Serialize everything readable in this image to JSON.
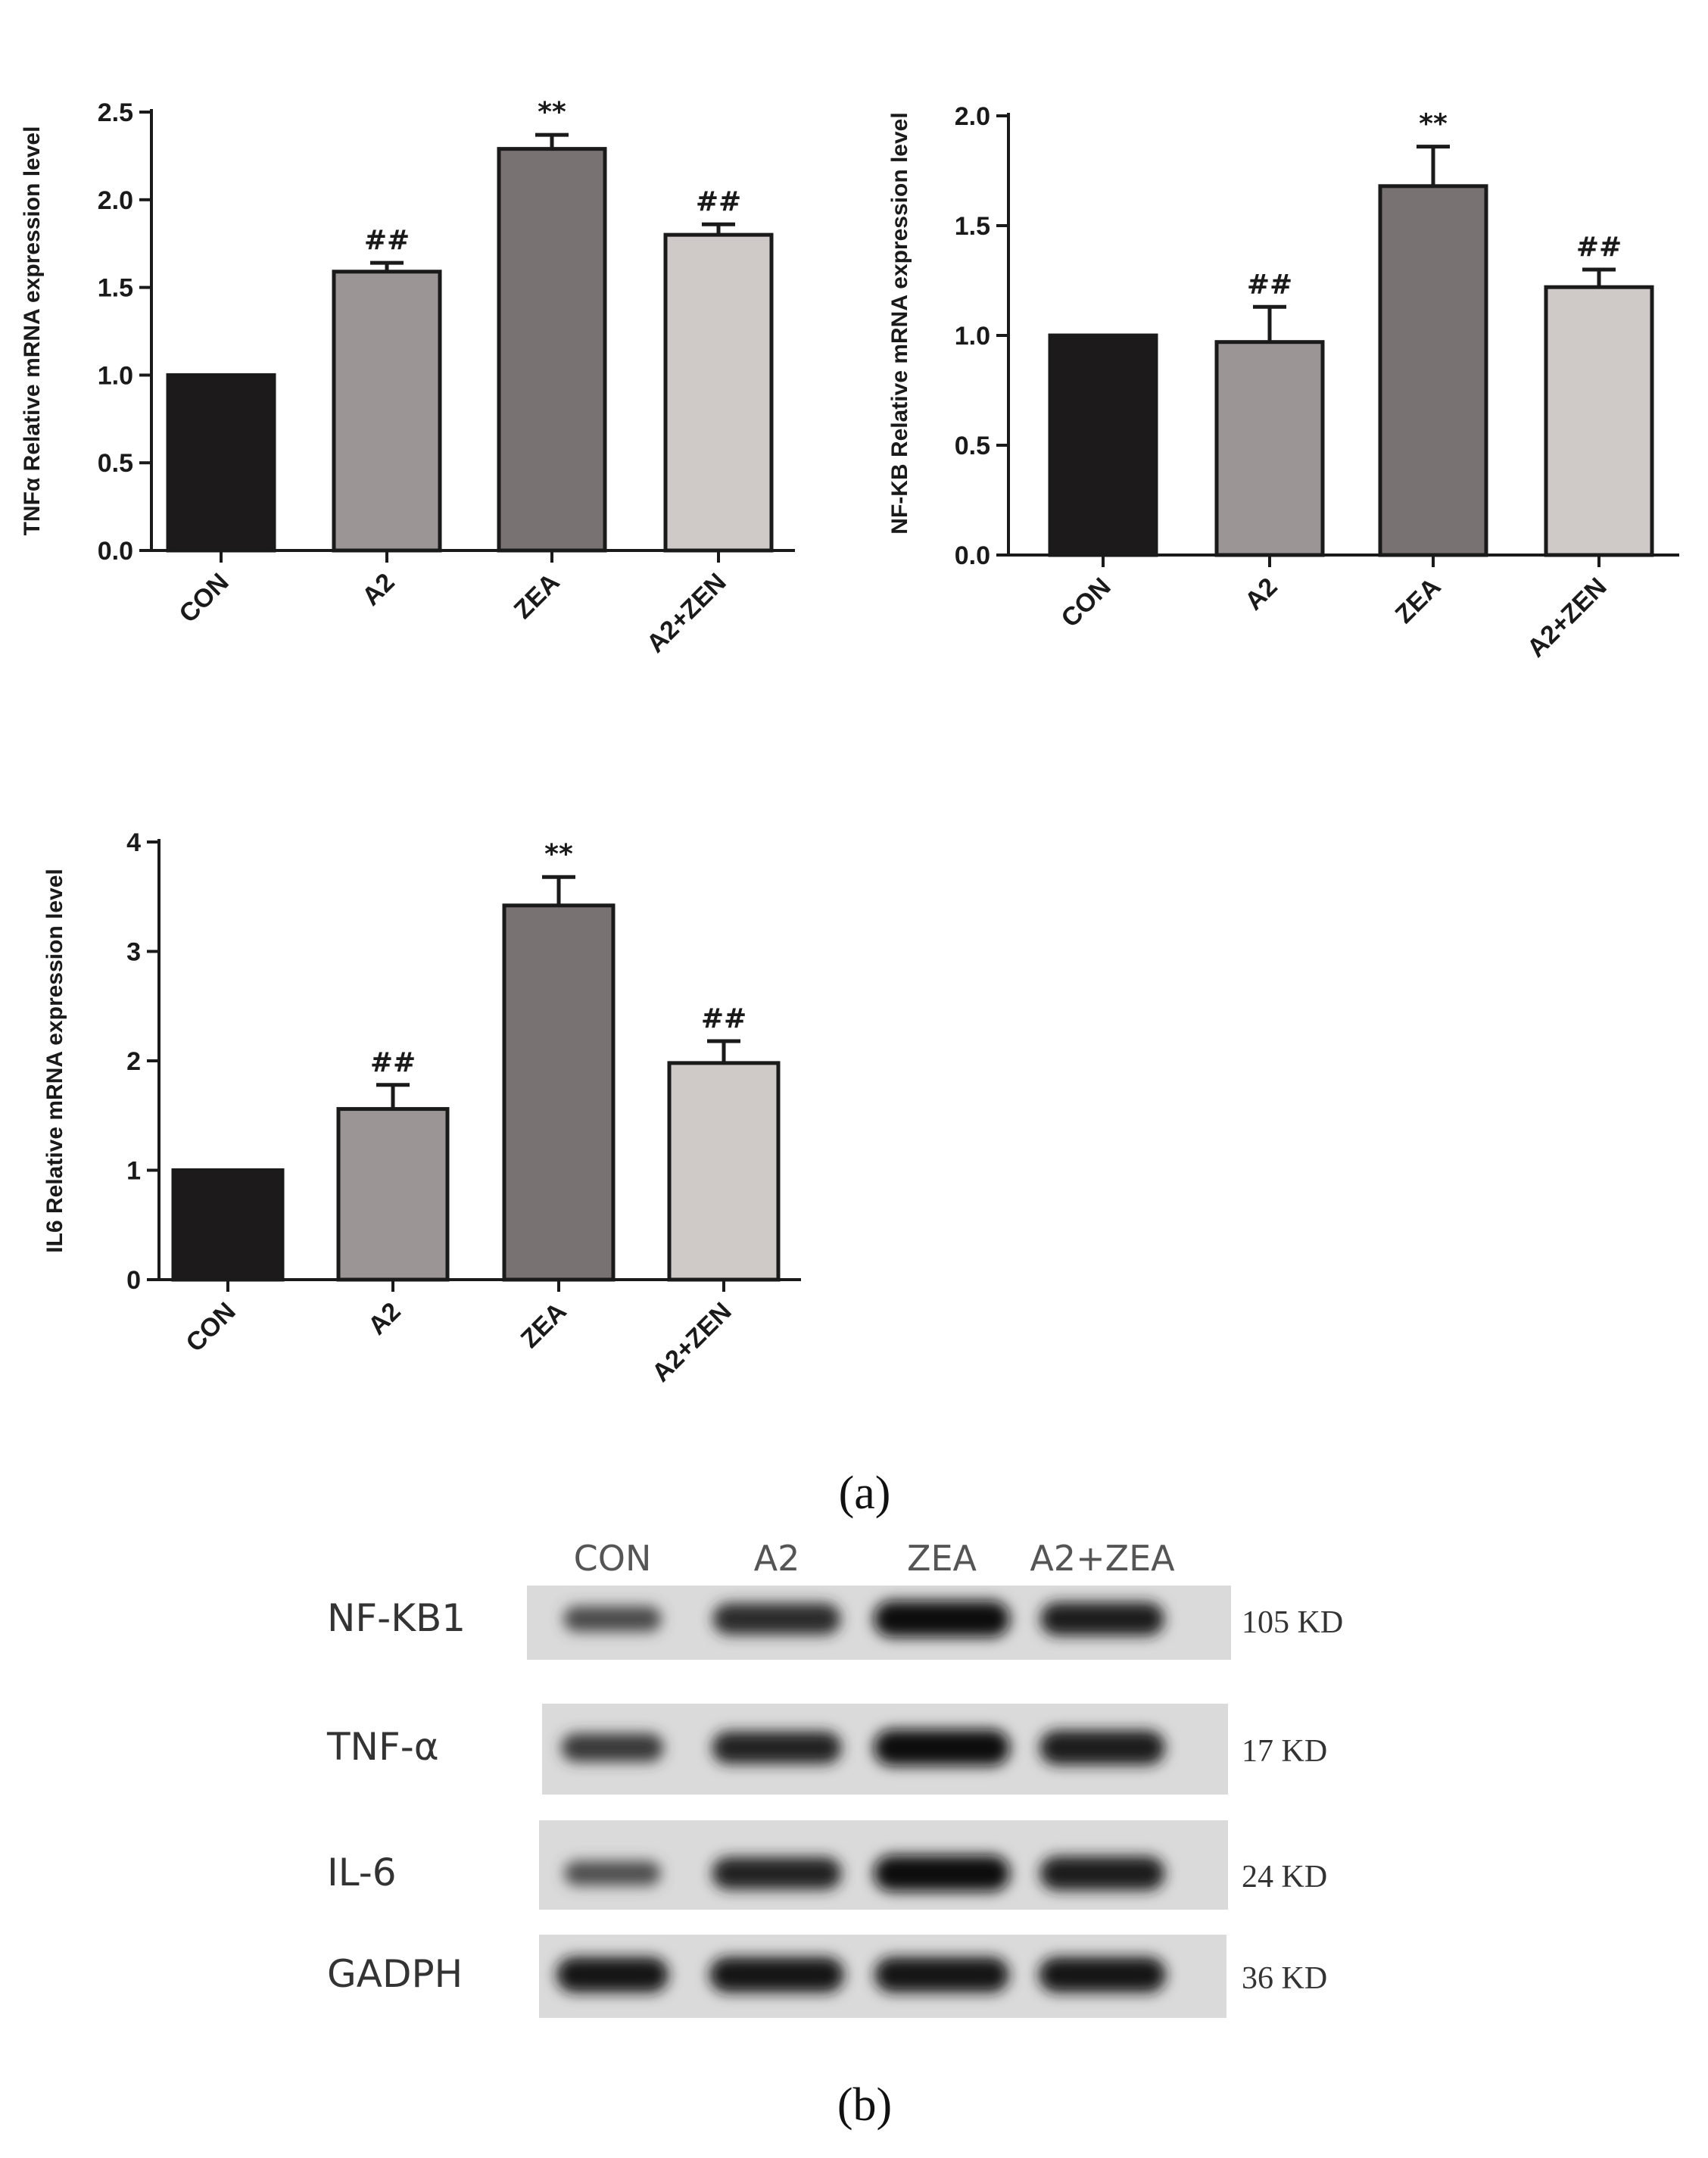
{
  "panel_labels": {
    "a": "(a)",
    "b": "(b)"
  },
  "chart_data": [
    {
      "type": "bar",
      "ylabel": "TNFα Relative mRNA expression level",
      "categories": [
        "CON",
        "A2",
        "ZEA",
        "A2+ZEN"
      ],
      "values": [
        1.0,
        1.59,
        2.29,
        1.8
      ],
      "errors": [
        0.0,
        0.05,
        0.08,
        0.06
      ],
      "annotations": [
        "",
        "##",
        "**",
        "##"
      ],
      "ylim": [
        0,
        2.5
      ],
      "yticks": [
        "0.0",
        "0.5",
        "1.0",
        "1.5",
        "2.0",
        "2.5"
      ],
      "colors": [
        "#1c1a1a",
        "#9b9595",
        "#797272",
        "#cfc9c8"
      ]
    },
    {
      "type": "bar",
      "ylabel": "NF-KB Relative mRNA expression level",
      "categories": [
        "CON",
        "A2",
        "ZEA",
        "A2+ZEN"
      ],
      "values": [
        1.0,
        0.97,
        1.68,
        1.22
      ],
      "errors": [
        0.0,
        0.16,
        0.18,
        0.08
      ],
      "annotations": [
        "",
        "##",
        "**",
        "##"
      ],
      "ylim": [
        0,
        2.0
      ],
      "yticks": [
        "0.0",
        "0.5",
        "1.0",
        "1.5",
        "2.0"
      ],
      "colors": [
        "#1c1a1a",
        "#9b9595",
        "#797272",
        "#cfc9c8"
      ]
    },
    {
      "type": "bar",
      "ylabel": "IL6 Relative mRNA expression level",
      "categories": [
        "CON",
        "A2",
        "ZEA",
        "A2+ZEN"
      ],
      "values": [
        1.0,
        1.56,
        3.42,
        1.98
      ],
      "errors": [
        0.0,
        0.22,
        0.26,
        0.2
      ],
      "annotations": [
        "",
        "##",
        "**",
        "##"
      ],
      "ylim": [
        0,
        4
      ],
      "yticks": [
        "0",
        "1",
        "2",
        "3",
        "4"
      ],
      "colors": [
        "#1c1a1a",
        "#9b9595",
        "#797272",
        "#cfc9c8"
      ]
    }
  ],
  "blot": {
    "lanes": [
      "CON",
      "A2",
      "ZEA",
      "A2+ZEA"
    ],
    "rows": [
      {
        "protein": "NF-KB1",
        "size": "105 KD",
        "intensity": [
          0.45,
          0.75,
          1.0,
          0.85
        ]
      },
      {
        "protein": "TNF-α",
        "size": "17 KD",
        "intensity": [
          0.6,
          0.8,
          1.0,
          0.9
        ]
      },
      {
        "protein": "IL-6",
        "size": "24 KD",
        "intensity": [
          0.4,
          0.8,
          1.0,
          0.88
        ]
      },
      {
        "protein": "GADPH",
        "size": "36 KD",
        "intensity": [
          0.95,
          0.95,
          0.95,
          0.95
        ]
      }
    ]
  }
}
